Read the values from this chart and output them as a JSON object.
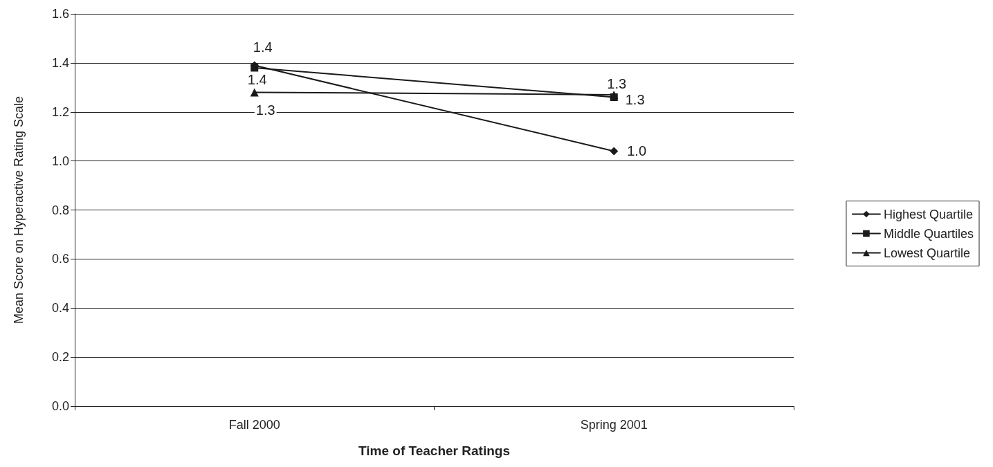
{
  "chart_data": {
    "type": "line",
    "xlabel": "Time of Teacher Ratings",
    "ylabel": "Mean Score on Hyperactive Rating Scale",
    "categories": [
      "Fall 2000",
      "Spring 2001"
    ],
    "series": [
      {
        "name": "Highest Quartile",
        "color": "#1a1a1a",
        "marker": "diamond",
        "values": [
          1.39,
          1.04
        ],
        "value_labels": [
          "1.4",
          "1.0"
        ]
      },
      {
        "name": "Middle Quartiles",
        "color": "#1a1a1a",
        "marker": "square",
        "values": [
          1.38,
          1.26
        ],
        "value_labels": [
          "1.4",
          "1.3"
        ]
      },
      {
        "name": "Lowest Quartile",
        "color": "#1a1a1a",
        "marker": "triangle",
        "values": [
          1.28,
          1.27
        ],
        "value_labels": [
          "1.3",
          "1.3"
        ]
      }
    ],
    "ylim": [
      0,
      1.6
    ],
    "yticks": [
      {
        "value": 0,
        "label": "0.0"
      },
      0.2,
      0.4,
      0.6,
      0.8,
      {
        "value": 1,
        "label": "1.0"
      },
      1.2,
      1.4,
      1.6
    ],
    "grid": "y",
    "legend": "right",
    "line_style": "solid"
  }
}
